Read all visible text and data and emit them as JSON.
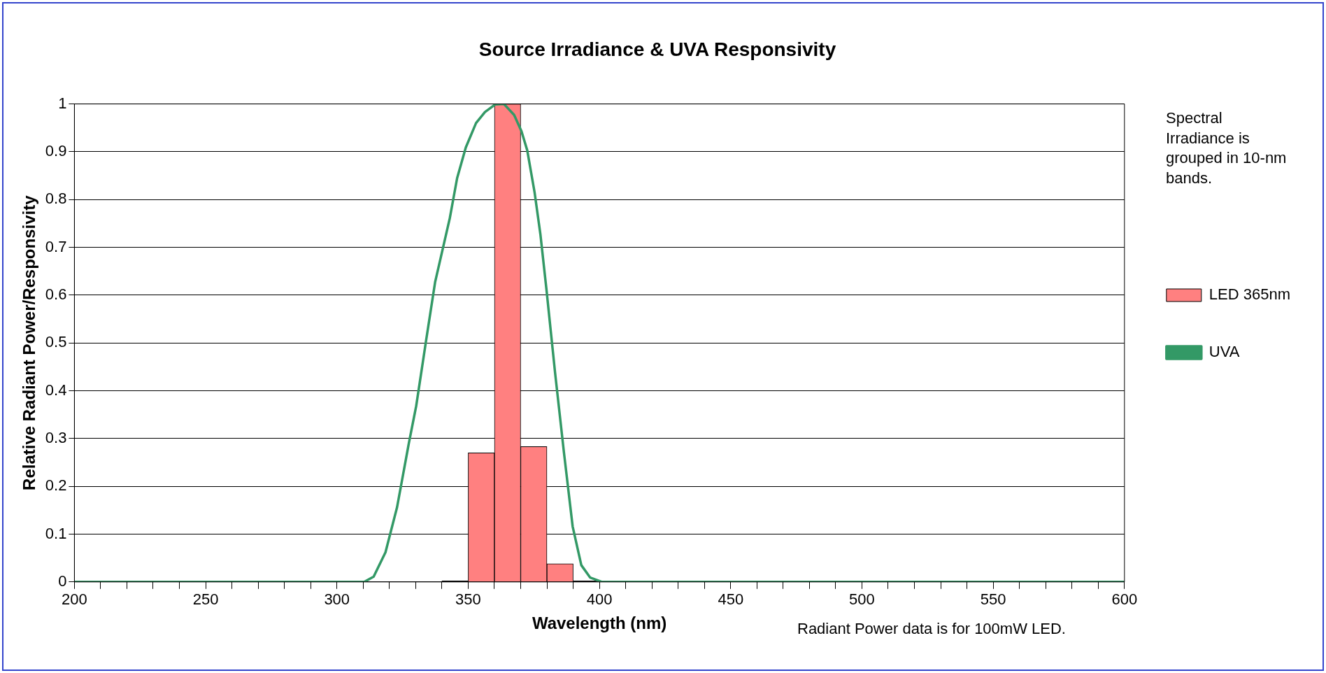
{
  "chart_data": {
    "type": "histogram",
    "title": "Source Irradiance & UVA Responsivity",
    "xlabel": "Wavelength (nm)",
    "ylabel": "Relative Radiant Power/Responsivity",
    "bins": [
      340,
      350,
      360,
      370,
      380,
      390,
      400
    ],
    "series": [
      {
        "name": "LED 365nm",
        "color": "#ff8080",
        "colors": [
          "#000000",
          "#ff8080",
          "#ff8080",
          "#ff8080",
          "#ff8080",
          "#000000"
        ],
        "values": [
          0.002,
          0.27,
          1,
          0.283,
          0.038,
          0.002
        ]
      },
      {
        "name": "UVA",
        "type": "line",
        "color": "#339966",
        "x": [
          200,
          310.4,
          314,
          318.5,
          322.9,
          327.4,
          330.2,
          334,
          337.4,
          340.2,
          343,
          345.8,
          349.1,
          353,
          356.4,
          360.3,
          363.6,
          367.5,
          370.3,
          372.5,
          375.3,
          377.5,
          379.8,
          383.1,
          386.5,
          389.8,
          393.1,
          396.5,
          401,
          600
        ],
        "values": [
          0,
          0,
          0.011,
          0.062,
          0.156,
          0.29,
          0.368,
          0.506,
          0.627,
          0.694,
          0.761,
          0.845,
          0.909,
          0.96,
          0.983,
          0.999,
          1,
          0.977,
          0.943,
          0.903,
          0.815,
          0.728,
          0.613,
          0.438,
          0.27,
          0.116,
          0.035,
          0.009,
          0,
          0
        ]
      }
    ],
    "xlim": [
      200,
      600
    ],
    "xticks": [
      200,
      {
        "value": 210,
        "label": null
      },
      {
        "value": 220,
        "label": null
      },
      {
        "value": 230,
        "label": null
      },
      {
        "value": 240,
        "label": null
      },
      250,
      {
        "value": 260,
        "label": null
      },
      {
        "value": 270,
        "label": null
      },
      {
        "value": 280,
        "label": null
      },
      {
        "value": 290,
        "label": null
      },
      300,
      {
        "value": 310,
        "label": null
      },
      {
        "value": 320,
        "label": null
      },
      {
        "value": 330,
        "label": null
      },
      {
        "value": 340,
        "label": null
      },
      350,
      {
        "value": 360,
        "label": null
      },
      {
        "value": 370,
        "label": null
      },
      {
        "value": 380,
        "label": null
      },
      {
        "value": 390,
        "label": null
      },
      400,
      {
        "value": 410,
        "label": null
      },
      {
        "value": 420,
        "label": null
      },
      {
        "value": 430,
        "label": null
      },
      {
        "value": 440,
        "label": null
      },
      450,
      {
        "value": 460,
        "label": null
      },
      {
        "value": 470,
        "label": null
      },
      {
        "value": 480,
        "label": null
      },
      {
        "value": 490,
        "label": null
      },
      500,
      {
        "value": 510,
        "label": null
      },
      {
        "value": 520,
        "label": null
      },
      {
        "value": 530,
        "label": null
      },
      {
        "value": 540,
        "label": null
      },
      550,
      {
        "value": 560,
        "label": null
      },
      {
        "value": 570,
        "label": null
      },
      {
        "value": 580,
        "label": null
      },
      {
        "value": 590,
        "label": null
      },
      600
    ],
    "ylim": [
      0,
      1
    ],
    "yticks": [
      0,
      0.1,
      0.2,
      0.3,
      0.4,
      0.5,
      0.6,
      0.7,
      0.8,
      0.9,
      1
    ],
    "grid": "y",
    "legend": "right",
    "marker": "none",
    "line_style": "solid",
    "annotations": [
      "Spectral Irradiance is grouped in 10-nm bands.",
      "Radiant Power data is for 100mW LED."
    ]
  }
}
